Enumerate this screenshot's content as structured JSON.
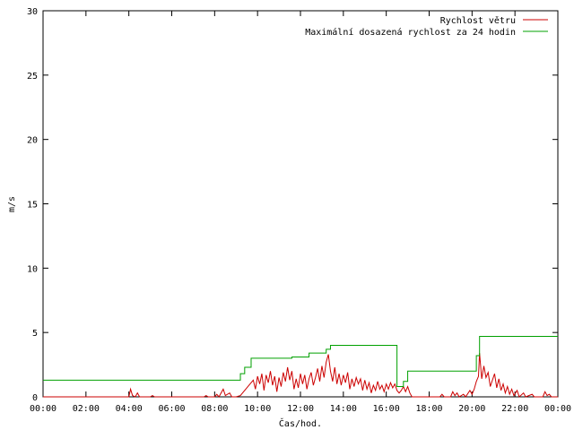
{
  "chart_data": {
    "type": "line",
    "xlabel": "Čas/hod.",
    "ylabel": "m/s",
    "ylim": [
      0,
      30
    ],
    "xlim": [
      0,
      24
    ],
    "x_tick_labels": [
      "00:00",
      "02:00",
      "04:00",
      "06:00",
      "08:00",
      "10:00",
      "12:00",
      "14:00",
      "16:00",
      "18:00",
      "20:00",
      "22:00",
      "00:00"
    ],
    "y_tick_labels": [
      "0",
      "5",
      "10",
      "15",
      "20",
      "25",
      "30"
    ],
    "y_ticks": [
      0,
      5,
      10,
      15,
      20,
      25,
      30
    ],
    "grid": false,
    "legend_placement": "top-right",
    "series": [
      {
        "name": "Rychlost větru",
        "color": "#cc0000",
        "points": [
          [
            0,
            0
          ],
          [
            4.0,
            0
          ],
          [
            4.08,
            0.6
          ],
          [
            4.17,
            0.1
          ],
          [
            4.3,
            0
          ],
          [
            4.4,
            0.3
          ],
          [
            4.5,
            0
          ],
          [
            5.0,
            0
          ],
          [
            5.1,
            0.1
          ],
          [
            5.2,
            0
          ],
          [
            7.5,
            0
          ],
          [
            7.6,
            0.1
          ],
          [
            7.7,
            0
          ],
          [
            8.0,
            0
          ],
          [
            8.1,
            0.2
          ],
          [
            8.2,
            0
          ],
          [
            8.4,
            0.6
          ],
          [
            8.5,
            0.1
          ],
          [
            8.7,
            0.3
          ],
          [
            8.8,
            0
          ],
          [
            9.0,
            0
          ],
          [
            9.2,
            0.1
          ],
          [
            9.4,
            0.5
          ],
          [
            9.6,
            0.9
          ],
          [
            9.8,
            1.3
          ],
          [
            9.9,
            0.6
          ],
          [
            10.0,
            1.6
          ],
          [
            10.1,
            1.0
          ],
          [
            10.2,
            1.8
          ],
          [
            10.3,
            0.5
          ],
          [
            10.4,
            1.7
          ],
          [
            10.5,
            1.1
          ],
          [
            10.6,
            2.0
          ],
          [
            10.7,
            0.9
          ],
          [
            10.8,
            1.6
          ],
          [
            10.9,
            0.4
          ],
          [
            11.0,
            1.5
          ],
          [
            11.1,
            0.8
          ],
          [
            11.2,
            1.9
          ],
          [
            11.3,
            1.2
          ],
          [
            11.4,
            2.3
          ],
          [
            11.5,
            1.3
          ],
          [
            11.6,
            2.0
          ],
          [
            11.7,
            0.6
          ],
          [
            11.8,
            1.4
          ],
          [
            11.9,
            0.7
          ],
          [
            12.0,
            1.8
          ],
          [
            12.1,
            1.0
          ],
          [
            12.2,
            1.7
          ],
          [
            12.3,
            0.6
          ],
          [
            12.4,
            1.4
          ],
          [
            12.5,
            1.9
          ],
          [
            12.6,
            0.9
          ],
          [
            12.7,
            1.5
          ],
          [
            12.8,
            2.2
          ],
          [
            12.9,
            1.2
          ],
          [
            13.0,
            2.4
          ],
          [
            13.1,
            1.5
          ],
          [
            13.2,
            2.7
          ],
          [
            13.3,
            3.3
          ],
          [
            13.4,
            2.0
          ],
          [
            13.5,
            1.2
          ],
          [
            13.6,
            2.3
          ],
          [
            13.7,
            1.0
          ],
          [
            13.8,
            1.8
          ],
          [
            13.9,
            0.9
          ],
          [
            14.0,
            1.7
          ],
          [
            14.1,
            1.1
          ],
          [
            14.2,
            1.9
          ],
          [
            14.3,
            0.6
          ],
          [
            14.4,
            1.4
          ],
          [
            14.5,
            0.8
          ],
          [
            14.6,
            1.5
          ],
          [
            14.7,
            1.0
          ],
          [
            14.8,
            1.4
          ],
          [
            14.9,
            0.5
          ],
          [
            15.0,
            1.3
          ],
          [
            15.1,
            0.6
          ],
          [
            15.2,
            1.1
          ],
          [
            15.3,
            0.3
          ],
          [
            15.4,
            0.9
          ],
          [
            15.5,
            0.5
          ],
          [
            15.6,
            1.2
          ],
          [
            15.7,
            0.6
          ],
          [
            15.8,
            0.9
          ],
          [
            15.9,
            0.4
          ],
          [
            16.0,
            1.0
          ],
          [
            16.1,
            0.6
          ],
          [
            16.2,
            1.1
          ],
          [
            16.3,
            0.7
          ],
          [
            16.4,
            1.0
          ],
          [
            16.5,
            0.5
          ],
          [
            16.6,
            0.3
          ],
          [
            16.7,
            0.5
          ],
          [
            16.8,
            0.8
          ],
          [
            16.9,
            0.4
          ],
          [
            17.0,
            0.8
          ],
          [
            17.1,
            0.3
          ],
          [
            17.2,
            0
          ],
          [
            18.5,
            0
          ],
          [
            18.6,
            0.2
          ],
          [
            18.7,
            0
          ],
          [
            19.0,
            0
          ],
          [
            19.1,
            0.4
          ],
          [
            19.2,
            0.1
          ],
          [
            19.3,
            0.3
          ],
          [
            19.4,
            0
          ],
          [
            19.6,
            0.2
          ],
          [
            19.7,
            0
          ],
          [
            19.9,
            0.5
          ],
          [
            20.0,
            0.2
          ],
          [
            20.1,
            0.6
          ],
          [
            20.2,
            1.2
          ],
          [
            20.3,
            1.6
          ],
          [
            20.35,
            3.4
          ],
          [
            20.45,
            1.4
          ],
          [
            20.55,
            2.4
          ],
          [
            20.65,
            1.5
          ],
          [
            20.75,
            1.9
          ],
          [
            20.85,
            0.8
          ],
          [
            20.95,
            1.3
          ],
          [
            21.05,
            1.8
          ],
          [
            21.15,
            0.7
          ],
          [
            21.25,
            1.4
          ],
          [
            21.35,
            0.5
          ],
          [
            21.45,
            1.0
          ],
          [
            21.55,
            0.3
          ],
          [
            21.65,
            0.8
          ],
          [
            21.75,
            0.2
          ],
          [
            21.85,
            0.6
          ],
          [
            21.95,
            0.1
          ],
          [
            22.1,
            0.5
          ],
          [
            22.2,
            0
          ],
          [
            22.4,
            0.3
          ],
          [
            22.5,
            0
          ],
          [
            22.8,
            0.2
          ],
          [
            22.9,
            0
          ],
          [
            23.3,
            0
          ],
          [
            23.4,
            0.4
          ],
          [
            23.5,
            0.1
          ],
          [
            23.6,
            0.2
          ],
          [
            23.7,
            0
          ],
          [
            24,
            0
          ]
        ]
      },
      {
        "name": "Maximální dosazená rychlost za 24 hodin",
        "color": "#00a000",
        "points": [
          [
            0,
            1.3
          ],
          [
            9.2,
            1.3
          ],
          [
            9.2,
            1.8
          ],
          [
            9.4,
            1.8
          ],
          [
            9.4,
            2.3
          ],
          [
            9.7,
            2.3
          ],
          [
            9.7,
            3.0
          ],
          [
            11.6,
            3.0
          ],
          [
            11.6,
            3.1
          ],
          [
            12.4,
            3.1
          ],
          [
            12.4,
            3.4
          ],
          [
            13.2,
            3.4
          ],
          [
            13.2,
            3.7
          ],
          [
            13.4,
            3.7
          ],
          [
            13.4,
            4.0
          ],
          [
            16.5,
            4.0
          ],
          [
            16.5,
            0.8
          ],
          [
            16.8,
            0.8
          ],
          [
            16.8,
            1.2
          ],
          [
            17.0,
            1.2
          ],
          [
            17.0,
            2.0
          ],
          [
            20.2,
            2.0
          ],
          [
            20.2,
            3.2
          ],
          [
            20.35,
            3.2
          ],
          [
            20.35,
            4.7
          ],
          [
            24,
            4.7
          ]
        ]
      }
    ]
  }
}
